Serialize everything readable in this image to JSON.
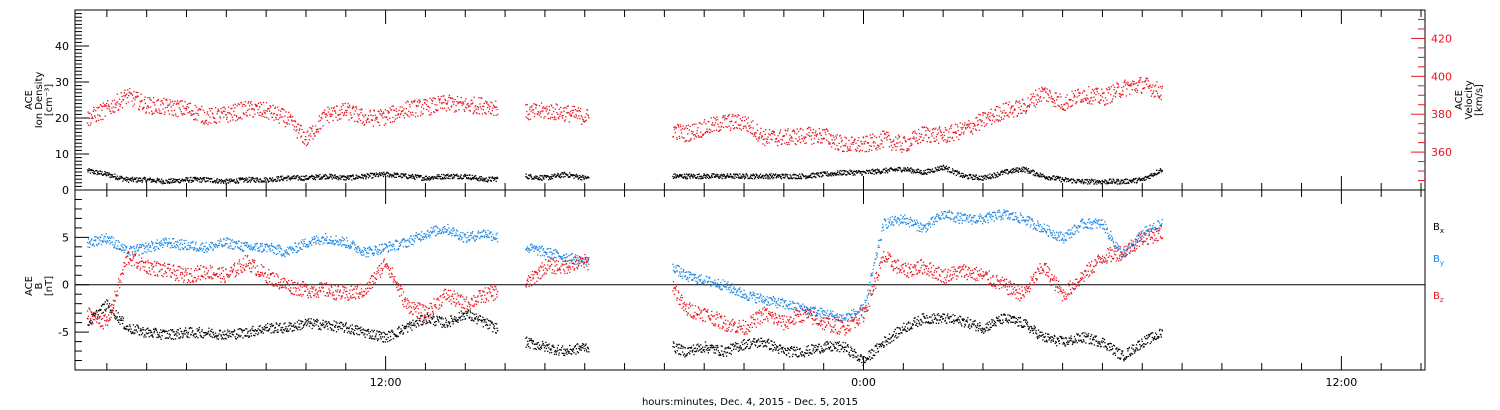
{
  "chart_data": [
    {
      "type": "scatter",
      "panel": "top",
      "ylabel": [
        "ACE",
        "Ion Density",
        "[cm⁻³]"
      ],
      "ylim": [
        0,
        50
      ],
      "yticks": [
        0,
        10,
        20,
        30,
        40
      ],
      "y2label": [
        "ACE",
        "Velocity",
        "[km/s]"
      ],
      "y2lim": [
        340,
        435
      ],
      "y2ticks": [
        360,
        380,
        400,
        420
      ],
      "x_unit": "hours since 00:00 Dec. 4, 2015",
      "xlim": [
        4.2,
        38.1
      ],
      "data_gaps": [
        [
          14.8,
          15.5
        ],
        [
          17.1,
          19.2
        ],
        [
          31.7,
          38.1
        ]
      ],
      "series": [
        {
          "name": "Ion Density",
          "axis": "left",
          "color": "#000000",
          "x": [
            4.5,
            5,
            5.5,
            6,
            6.5,
            7,
            7.5,
            8,
            8.5,
            9,
            9.5,
            10,
            10.5,
            11,
            11.5,
            12,
            12.5,
            13,
            13.5,
            14,
            14.5,
            15.5,
            16,
            16.5,
            17,
            19.2,
            19.5,
            20,
            20.5,
            21,
            21.5,
            22,
            22.5,
            23,
            23.5,
            24,
            24.5,
            25,
            25.5,
            26,
            26.5,
            27,
            27.5,
            28,
            28.5,
            29,
            29.5,
            30,
            30.5,
            31,
            31.5
          ],
          "y": [
            5.5,
            4.5,
            3,
            3,
            2.5,
            3,
            3,
            2.5,
            3,
            3,
            3.5,
            3.5,
            4,
            3.5,
            4,
            4.5,
            4,
            3.5,
            4,
            4,
            3,
            4,
            3.5,
            4.5,
            3.5,
            4,
            4,
            4,
            4,
            4,
            4,
            4,
            4,
            4.5,
            5,
            5,
            5.5,
            6,
            5,
            6.5,
            4,
            3.5,
            5,
            6,
            4,
            3,
            2.5,
            2.5,
            2.5,
            3,
            6
          ]
        },
        {
          "name": "Velocity",
          "axis": "right",
          "color": "#e8141e",
          "x": [
            4.5,
            5,
            5.5,
            6,
            6.5,
            7,
            7.5,
            8,
            8.5,
            9,
            9.5,
            10,
            10.5,
            11,
            11.5,
            12,
            12.5,
            13,
            13.5,
            14,
            14.5,
            15.5,
            16,
            16.5,
            17,
            19.2,
            19.5,
            20,
            20.5,
            21,
            21.5,
            22,
            22.5,
            23,
            23.5,
            24,
            24.5,
            25,
            25.5,
            26,
            26.5,
            27,
            27.5,
            28,
            28.5,
            29,
            29.5,
            30,
            30.5,
            31,
            31.5
          ],
          "y": [
            378,
            383,
            390,
            385,
            384,
            383,
            379,
            380,
            383,
            382,
            378,
            367,
            380,
            382,
            378,
            379,
            383,
            384,
            386,
            385,
            385,
            381,
            382,
            381,
            379,
            372,
            370,
            373,
            376,
            376,
            368,
            368,
            369,
            369,
            364,
            364,
            367,
            364,
            370,
            369,
            372,
            377,
            382,
            384,
            392,
            386,
            391,
            389,
            394,
            396,
            392
          ]
        }
      ]
    },
    {
      "type": "scatter",
      "panel": "bottom",
      "ylabel": [
        "ACE",
        "B",
        "[nT]"
      ],
      "ylim": [
        -9,
        10
      ],
      "yticks": [
        -5,
        0,
        5
      ],
      "x_unit": "hours since 00:00 Dec. 4, 2015",
      "xlim": [
        4.2,
        38.1
      ],
      "xticks": [
        "12:00",
        "0:00",
        "12:00"
      ],
      "xtick_hours": [
        12,
        24,
        36
      ],
      "xlabel": "hours:minutes, Dec.  4, 2015 - Dec.  5, 2015",
      "data_gaps": [
        [
          14.8,
          15.5
        ],
        [
          17.1,
          19.2
        ],
        [
          31.7,
          38.1
        ]
      ],
      "legend_position": "right",
      "series": [
        {
          "name": "Bx",
          "color": "#000000",
          "x": [
            4.5,
            5,
            5.5,
            6,
            6.5,
            7,
            7.5,
            8,
            8.5,
            9,
            9.5,
            10,
            10.5,
            11,
            11.5,
            12,
            12.5,
            13,
            13.5,
            14,
            14.5,
            15.5,
            16,
            16.5,
            17,
            19.2,
            19.5,
            20,
            20.5,
            21,
            21.5,
            22,
            22.5,
            23,
            23.5,
            24,
            24.5,
            25,
            25.5,
            26,
            26.5,
            27,
            27.5,
            28,
            28.5,
            29,
            29.5,
            30,
            30.5,
            31,
            31.5
          ],
          "y": [
            -4,
            -2,
            -4.5,
            -5,
            -5.2,
            -5,
            -5,
            -5.2,
            -5,
            -4.5,
            -4.5,
            -4,
            -4.2,
            -4.5,
            -5,
            -5.5,
            -4.5,
            -3.5,
            -4,
            -3,
            -4,
            -6,
            -6.5,
            -7,
            -6.5,
            -6.5,
            -7,
            -6.5,
            -7,
            -6.2,
            -6,
            -7,
            -7,
            -6.5,
            -6.5,
            -8,
            -6,
            -4.5,
            -3.5,
            -3.5,
            -3.8,
            -4.5,
            -3.5,
            -4,
            -5.5,
            -6,
            -5.5,
            -6,
            -7.5,
            -6,
            -5
          ]
        },
        {
          "name": "By",
          "color": "#1e88e5",
          "x": [
            4.5,
            5,
            5.5,
            6,
            6.5,
            7,
            7.5,
            8,
            8.5,
            9,
            9.5,
            10,
            10.5,
            11,
            11.5,
            12,
            12.5,
            13,
            13.5,
            14,
            14.5,
            15.5,
            16,
            16.5,
            17,
            19.2,
            19.5,
            20,
            20.5,
            21,
            21.5,
            22,
            22.5,
            23,
            23.5,
            24,
            24.5,
            25,
            25.5,
            26,
            26.5,
            27,
            27.5,
            28,
            28.5,
            29,
            29.5,
            30,
            30.5,
            31,
            31.5
          ],
          "y": [
            4.5,
            5,
            3.5,
            4,
            4.5,
            4.2,
            4,
            4.5,
            4,
            4,
            3.5,
            4.5,
            5,
            4.5,
            3.5,
            4,
            4.5,
            5.5,
            6,
            5,
            5.5,
            4,
            3.5,
            3,
            2.5,
            2,
            1,
            0.5,
            0,
            -1,
            -1.5,
            -2,
            -2.5,
            -3,
            -3.5,
            -2.5,
            6.5,
            7,
            6,
            7.5,
            7,
            7,
            7.5,
            7,
            6,
            5,
            6.5,
            6.5,
            3,
            5.5,
            6.5
          ]
        },
        {
          "name": "Bz",
          "color": "#e8141e",
          "x": [
            4.5,
            5,
            5.5,
            6,
            6.5,
            7,
            7.5,
            8,
            8.5,
            9,
            9.5,
            10,
            10.5,
            11,
            11.5,
            12,
            12.5,
            13,
            13.5,
            14,
            14.5,
            15.5,
            16,
            16.5,
            17,
            19.2,
            19.5,
            20,
            20.5,
            21,
            21.5,
            22,
            22.5,
            23,
            23.5,
            24,
            24.5,
            25,
            25.5,
            26,
            26.5,
            27,
            27.5,
            28,
            28.5,
            29,
            29.5,
            30,
            30.5,
            31,
            31.5
          ],
          "y": [
            -3,
            -4,
            3,
            2,
            1.5,
            1,
            1.5,
            1,
            2.5,
            1,
            0,
            -0.5,
            -0.5,
            -1,
            -0.5,
            2.5,
            -2,
            -3,
            -1,
            -2,
            -1,
            0,
            2,
            2,
            2.5,
            0,
            -2.5,
            -3,
            -4,
            -4.5,
            -3,
            -4,
            -3,
            -4,
            -4.5,
            -3,
            3,
            1.5,
            2,
            1,
            1.5,
            1,
            0,
            -1,
            2,
            -1,
            1,
            3,
            3.5,
            5,
            5.5
          ]
        }
      ]
    }
  ],
  "legend": {
    "bx": {
      "base": "B",
      "sub": "x"
    },
    "by": {
      "base": "B",
      "sub": "y"
    },
    "bz": {
      "base": "B",
      "sub": "z"
    }
  }
}
